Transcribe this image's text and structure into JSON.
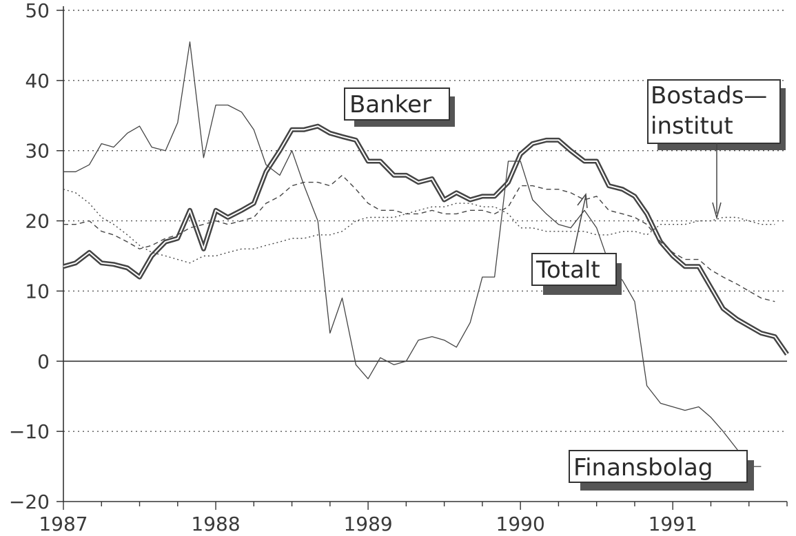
{
  "chart_data": {
    "type": "line",
    "title": "",
    "xlabel": "",
    "ylabel": "",
    "xlim": [
      1987.0,
      1991.75
    ],
    "ylim": [
      -20,
      50
    ],
    "y_ticks": [
      -20,
      -10,
      0,
      10,
      20,
      30,
      40,
      50
    ],
    "y_tick_labels": [
      "−20",
      "−10",
      "0",
      "10",
      "20",
      "30",
      "40",
      "50"
    ],
    "x_ticks": [
      1987,
      1988,
      1989,
      1990,
      1991
    ],
    "x_tick_labels": [
      "1987",
      "1988",
      "1989",
      "1990",
      "1991"
    ],
    "grid": "horizontal dotted at each y tick",
    "series": [
      {
        "name": "Banker",
        "style": "thick double line",
        "x": [
          1987.0,
          1987.08,
          1987.17,
          1987.25,
          1987.33,
          1987.42,
          1987.5,
          1987.58,
          1987.67,
          1987.75,
          1987.83,
          1987.92,
          1988.0,
          1988.08,
          1988.17,
          1988.25,
          1988.33,
          1988.42,
          1988.5,
          1988.58,
          1988.67,
          1988.75,
          1988.83,
          1988.92,
          1989.0,
          1989.08,
          1989.17,
          1989.25,
          1989.33,
          1989.42,
          1989.5,
          1989.58,
          1989.67,
          1989.75,
          1989.83,
          1989.92,
          1990.0,
          1990.08,
          1990.17,
          1990.25,
          1990.33,
          1990.42,
          1990.5,
          1990.58,
          1990.67,
          1990.75,
          1990.83,
          1990.92,
          1991.0,
          1991.08,
          1991.17,
          1991.25,
          1991.33,
          1991.42,
          1991.5,
          1991.58,
          1991.67,
          1991.75
        ],
        "values": [
          13.5,
          14,
          15.5,
          14,
          13.8,
          13.3,
          12,
          15,
          17,
          17.5,
          21.5,
          16,
          21.5,
          20.5,
          21.5,
          22.5,
          27,
          30,
          33,
          33,
          33.5,
          32.5,
          32,
          31.5,
          28.5,
          28.5,
          26.5,
          26.5,
          25.5,
          26,
          23,
          24,
          23,
          23.5,
          23.5,
          25.5,
          29.5,
          31,
          31.5,
          31.5,
          30,
          28.5,
          28.5,
          25,
          24.5,
          23.5,
          21,
          17,
          15,
          13.5,
          13.5,
          10.5,
          7.5,
          6,
          5,
          4,
          3.5,
          1
        ]
      },
      {
        "name": "Finansbolag",
        "style": "thin solid line",
        "x": [
          1987.0,
          1987.08,
          1987.17,
          1987.25,
          1987.33,
          1987.42,
          1987.5,
          1987.58,
          1987.67,
          1987.75,
          1987.83,
          1987.92,
          1988.0,
          1988.08,
          1988.17,
          1988.25,
          1988.33,
          1988.42,
          1988.5,
          1988.58,
          1988.67,
          1988.75,
          1988.83,
          1988.92,
          1989.0,
          1989.08,
          1989.17,
          1989.25,
          1989.33,
          1989.42,
          1989.5,
          1989.58,
          1989.67,
          1989.75,
          1989.83,
          1989.92,
          1990.0,
          1990.08,
          1990.17,
          1990.25,
          1990.33,
          1990.42,
          1990.5,
          1990.58,
          1990.67,
          1990.75,
          1990.83,
          1990.92,
          1991.0,
          1991.08,
          1991.17,
          1991.25,
          1991.33,
          1991.42,
          1991.5,
          1991.58
        ],
        "values": [
          27,
          27,
          28,
          31,
          30.5,
          32.5,
          33.5,
          30.5,
          30,
          34,
          45.5,
          29,
          36.5,
          36.5,
          35.5,
          33,
          28,
          26.5,
          30,
          25,
          20,
          4,
          9,
          -0.5,
          -2.5,
          0.5,
          -0.5,
          0,
          3,
          3.5,
          3,
          2,
          5.5,
          12,
          12,
          28.5,
          28.5,
          23,
          21,
          19.5,
          19,
          21.5,
          19,
          14,
          11.5,
          8.5,
          -3.5,
          -6,
          -6.5,
          -7,
          -6.5,
          -8,
          -10,
          -12.5,
          -15,
          -15
        ]
      },
      {
        "name": "Totalt",
        "style": "dashed line",
        "x": [
          1987.0,
          1987.08,
          1987.17,
          1987.25,
          1987.33,
          1987.42,
          1987.5,
          1987.58,
          1987.67,
          1987.75,
          1987.83,
          1987.92,
          1988.0,
          1988.08,
          1988.17,
          1988.25,
          1988.33,
          1988.42,
          1988.5,
          1988.58,
          1988.67,
          1988.75,
          1988.83,
          1988.92,
          1989.0,
          1989.08,
          1989.17,
          1989.25,
          1989.33,
          1989.42,
          1989.5,
          1989.58,
          1989.67,
          1989.75,
          1989.83,
          1989.92,
          1990.0,
          1990.08,
          1990.17,
          1990.25,
          1990.33,
          1990.42,
          1990.5,
          1990.58,
          1990.67,
          1990.75,
          1990.83,
          1990.92,
          1991.0,
          1991.08,
          1991.17,
          1991.25,
          1991.33,
          1991.42,
          1991.5,
          1991.58,
          1991.67
        ],
        "values": [
          19.5,
          19.5,
          20,
          18.5,
          18,
          17,
          16,
          16.5,
          17.5,
          18,
          19,
          19.5,
          20,
          19.5,
          20,
          20.5,
          22.5,
          23.5,
          25,
          25.5,
          25.5,
          25,
          26.5,
          24.5,
          22.5,
          21.5,
          21.5,
          21,
          21,
          21.5,
          21,
          21,
          21.5,
          21.5,
          21,
          22,
          25,
          25,
          24.5,
          24.5,
          24,
          23,
          23.5,
          21.5,
          21,
          20.5,
          19.5,
          17,
          15.5,
          14.5,
          14.5,
          13,
          12,
          11,
          10,
          9,
          8.5
        ]
      },
      {
        "name": "Bostads—institut",
        "style": "dotted line",
        "x": [
          1987.0,
          1987.08,
          1987.17,
          1987.25,
          1987.33,
          1987.42,
          1987.5,
          1987.58,
          1987.67,
          1987.75,
          1987.83,
          1987.92,
          1988.0,
          1988.08,
          1988.17,
          1988.25,
          1988.33,
          1988.42,
          1988.5,
          1988.58,
          1988.67,
          1988.75,
          1988.83,
          1988.92,
          1989.0,
          1989.08,
          1989.17,
          1989.25,
          1989.33,
          1989.42,
          1989.5,
          1989.58,
          1989.67,
          1989.75,
          1989.83,
          1989.92,
          1990.0,
          1990.08,
          1990.17,
          1990.25,
          1990.33,
          1990.42,
          1990.5,
          1990.58,
          1990.67,
          1990.75,
          1990.83,
          1990.92,
          1991.0,
          1991.08,
          1991.17,
          1991.25,
          1991.33,
          1991.42,
          1991.5,
          1991.58,
          1991.67
        ],
        "values": [
          24.5,
          24,
          22.5,
          20.5,
          19.5,
          18,
          16.5,
          15.5,
          15,
          14.5,
          14,
          15,
          15,
          15.5,
          16,
          16,
          16.5,
          17,
          17.5,
          17.5,
          18,
          18,
          18.5,
          20,
          20.5,
          20.5,
          20.5,
          21,
          21.5,
          22,
          22,
          22.5,
          22.5,
          22,
          22,
          21,
          19,
          19,
          18.5,
          18.5,
          18.5,
          18.5,
          18,
          18,
          18.5,
          18.5,
          18,
          19.5,
          19.5,
          19.5,
          20,
          20,
          20.5,
          20.5,
          20,
          19.5,
          19.5
        ]
      }
    ],
    "annotations": [
      {
        "text": "Banker"
      },
      {
        "text": "Bostads—",
        "text2": "institut"
      },
      {
        "text": "Totalt"
      },
      {
        "text": "Finansbolag"
      }
    ]
  }
}
